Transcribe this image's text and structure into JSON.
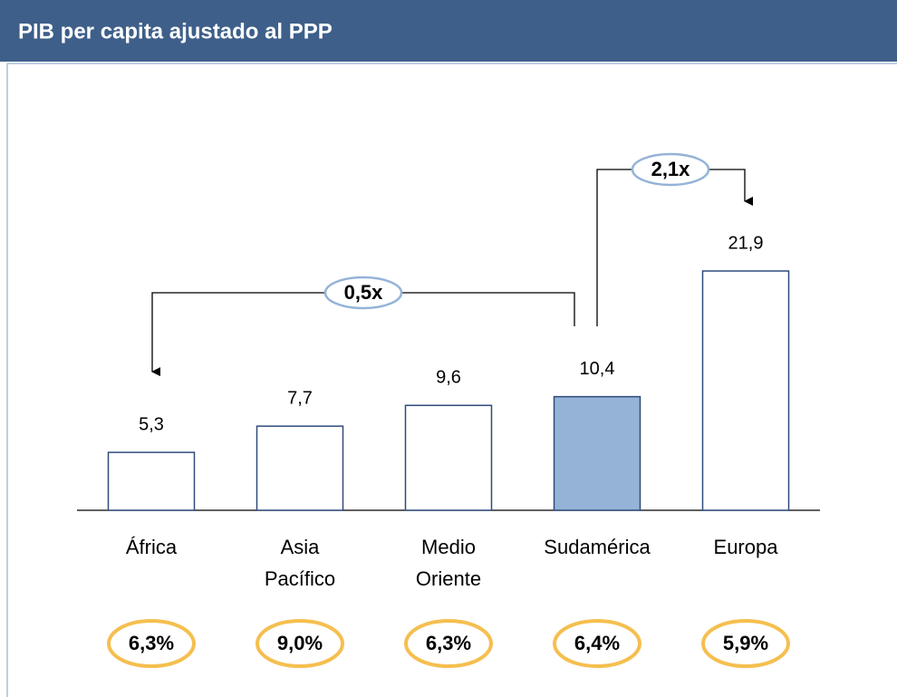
{
  "chart_data": {
    "type": "bar",
    "title": "PIB per capita ajustado al PPP",
    "categories": [
      "África",
      "Asia Pacífico",
      "Medio Oriente",
      "Sudamérica",
      "Europa"
    ],
    "values": [
      5.3,
      7.7,
      9.6,
      10.4,
      21.9
    ],
    "value_labels": [
      "5,3",
      "7,7",
      "9,6",
      "10,4",
      "21,9"
    ],
    "colors": [
      "#ffffff",
      "#ffffff",
      "#ffffff",
      "#95b3d7",
      "#ffffff"
    ],
    "comparisons": [
      {
        "from": 3,
        "to": 0,
        "label": "0,5x"
      },
      {
        "from": 3,
        "to": 4,
        "label": "2,1x"
      }
    ],
    "growth_labels": [
      "6,3%",
      "9,0%",
      "6,3%",
      "6,4%",
      "5,9%"
    ]
  }
}
